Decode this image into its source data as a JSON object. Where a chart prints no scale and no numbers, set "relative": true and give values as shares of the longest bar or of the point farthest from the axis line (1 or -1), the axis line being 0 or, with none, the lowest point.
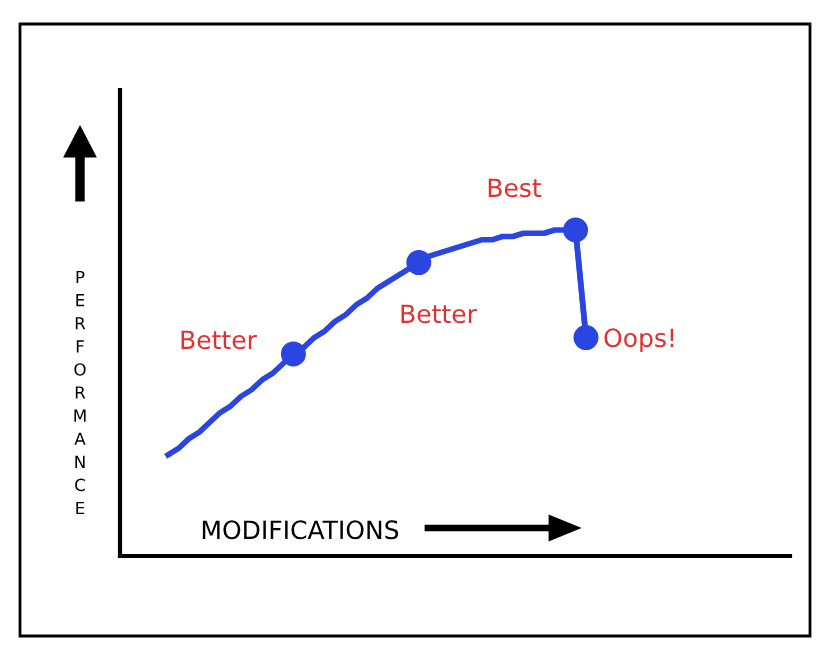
{
  "chart_data": {
    "type": "line",
    "relative": true,
    "xlabel": "MODIFICATIONS",
    "ylabel": "PERFORMANCE",
    "categories": [
      null,
      null,
      null,
      null,
      null,
      null,
      null,
      null,
      null,
      null,
      null,
      null,
      null,
      null,
      null,
      null,
      null,
      null,
      null,
      null,
      null,
      null,
      null,
      null,
      null,
      null,
      null,
      null,
      null,
      null,
      null,
      null,
      null,
      null,
      null,
      null,
      null,
      null,
      null,
      null,
      null
    ],
    "series": [
      {
        "color": "#2a45e0",
        "marker": "none",
        "values": [
          0.31,
          0.33,
          0.36,
          0.38,
          0.41,
          0.44,
          0.46,
          0.49,
          0.51,
          0.54,
          0.56,
          0.59,
          0.62,
          0.64,
          0.67,
          0.69,
          0.72,
          0.74,
          0.77,
          0.79,
          0.82,
          0.84,
          0.86,
          0.88,
          0.9,
          0.92,
          0.93,
          0.94,
          0.95,
          0.96,
          0.97,
          0.97,
          0.98,
          0.98,
          0.99,
          0.99,
          0.99,
          1.0,
          1.0,
          1.0,
          0.67
        ]
      },
      {
        "color": "#2a45e0",
        "marker": "circle",
        "values": [
          null,
          null,
          null,
          null,
          null,
          null,
          null,
          null,
          null,
          null,
          null,
          null,
          0.62,
          null,
          null,
          null,
          null,
          null,
          null,
          null,
          null,
          null,
          null,
          null,
          0.9,
          null,
          null,
          null,
          null,
          null,
          null,
          null,
          null,
          null,
          null,
          null,
          null,
          null,
          null,
          1.0,
          0.67
        ]
      }
    ],
    "annotations": [
      "Better",
      "Better",
      "Best",
      "Oops!"
    ]
  }
}
